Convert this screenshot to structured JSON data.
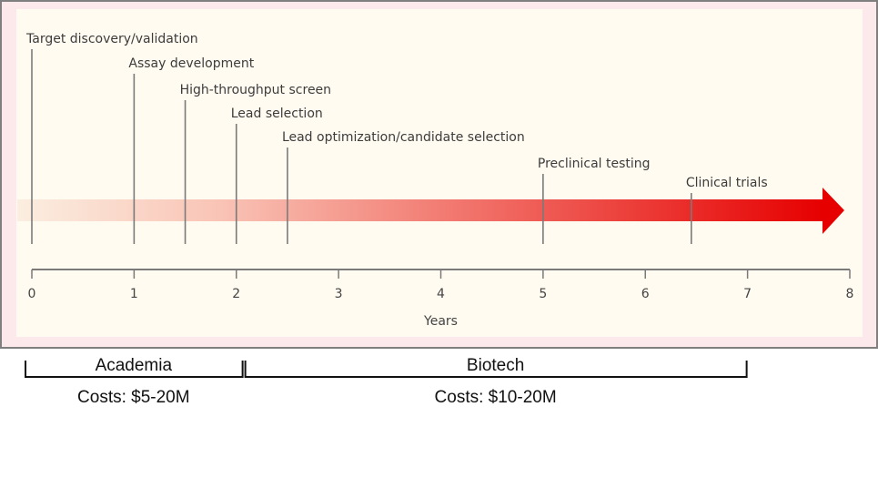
{
  "chart_data": {
    "type": "timeline",
    "xlabel": "Years",
    "xlim": [
      0,
      8
    ],
    "ticks": [
      "0",
      "1",
      "2",
      "3",
      "4",
      "5",
      "6",
      "7",
      "8"
    ],
    "milestones": [
      {
        "label": "Target discovery/validation",
        "year": 0
      },
      {
        "label": "Assay development",
        "year": 1
      },
      {
        "label": "High-throughput screen",
        "year": 1.5
      },
      {
        "label": "Lead selection",
        "year": 2
      },
      {
        "label": "Lead optimization/candidate selection",
        "year": 2.5
      },
      {
        "label": "Preclinical testing",
        "year": 5
      },
      {
        "label": "Clinical trials",
        "year": 6.45
      }
    ],
    "phases": [
      {
        "label": "Academia",
        "cost": "Costs: $5-20M",
        "start": -0.08,
        "end": 2.07
      },
      {
        "label": "Biotech",
        "cost": "Costs: $10-20M",
        "start": 2.07,
        "end": 7
      }
    ],
    "colors": {
      "arrow_start": "#fbeee0",
      "arrow_end": "#e60000",
      "line": "#7a7a7a"
    }
  }
}
